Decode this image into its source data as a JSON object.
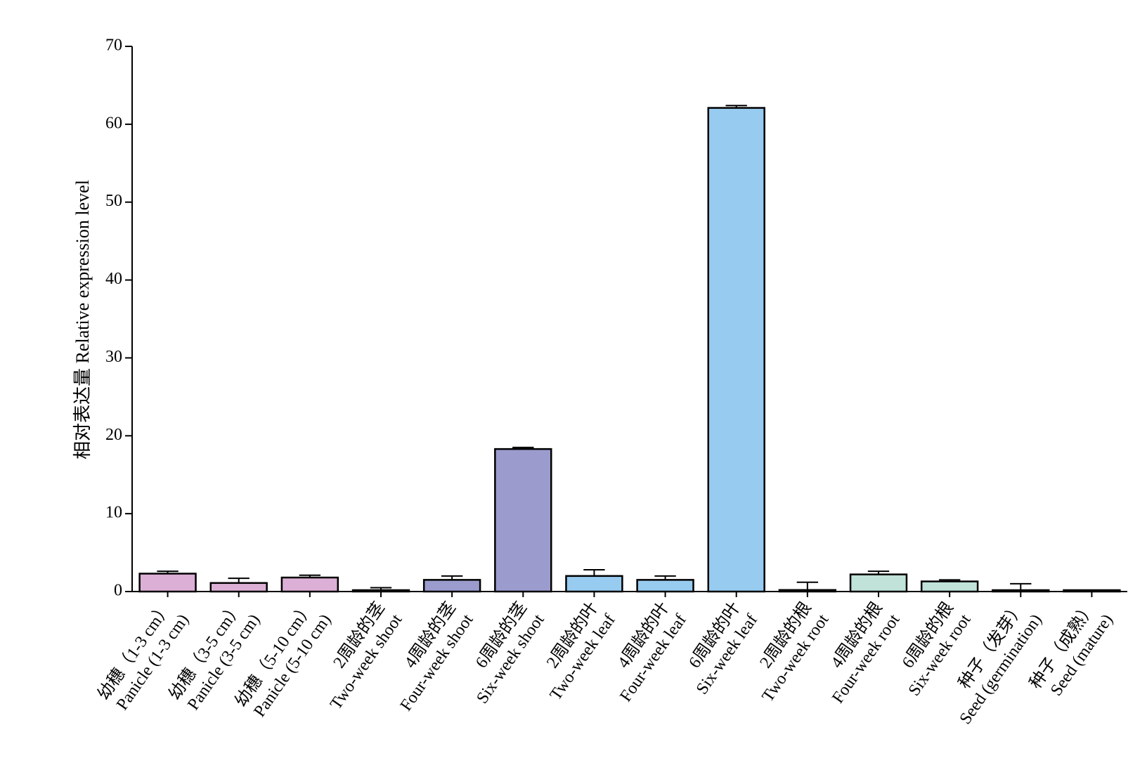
{
  "chart_data": {
    "type": "bar",
    "ylabel": "相对表达量 Relative expression level",
    "xlabel": "",
    "ylim": [
      0,
      70
    ],
    "yticks": [
      0,
      10,
      20,
      30,
      40,
      50,
      60,
      70
    ],
    "grid": false,
    "legend": "none",
    "categories": [
      {
        "zh": "幼穗（1-3 cm）",
        "en": "Panicle (1-3 cm)"
      },
      {
        "zh": "幼穗（3-5 cm）",
        "en": "Panicle (3-5 cm)"
      },
      {
        "zh": "幼穗（5-10 cm）",
        "en": "Panicle (5-10 cm)"
      },
      {
        "zh": "2周龄的茎",
        "en": "Two-week shoot"
      },
      {
        "zh": "4周龄的茎",
        "en": "Four-week shoot"
      },
      {
        "zh": "6周龄的茎",
        "en": "Six-week shoot"
      },
      {
        "zh": "2周龄的叶",
        "en": "Two-week leaf"
      },
      {
        "zh": "4周龄的叶",
        "en": "Four-week leaf"
      },
      {
        "zh": "6周龄的叶",
        "en": "Six-week leaf"
      },
      {
        "zh": "2周龄的根",
        "en": "Two-week root"
      },
      {
        "zh": "4周龄的根",
        "en": "Four-week root"
      },
      {
        "zh": "6周龄的根",
        "en": "Six-week root"
      },
      {
        "zh": "种子（发芽）",
        "en": "Seed (germination)"
      },
      {
        "zh": "种子（成熟）",
        "en": "Seed (mature)"
      }
    ],
    "values": [
      2.3,
      1.1,
      1.8,
      0.1,
      1.5,
      18.3,
      2.0,
      1.5,
      62.1,
      0.2,
      2.2,
      1.3,
      0.1,
      0.05
    ],
    "errors": [
      0.3,
      0.6,
      0.3,
      0.4,
      0.5,
      0.2,
      0.8,
      0.5,
      0.3,
      1.0,
      0.4,
      0.2,
      0.9,
      0.1
    ],
    "colors": [
      "#dcb0d6",
      "#dcb0d6",
      "#dcb0d6",
      "#9b9ccd",
      "#9b9ccd",
      "#9b9ccd",
      "#97cbef",
      "#97cbef",
      "#97cbef",
      "#c0e2d9",
      "#c0e2d9",
      "#c0e2d9",
      "#c0e2d9",
      "#c0e2d9"
    ]
  }
}
